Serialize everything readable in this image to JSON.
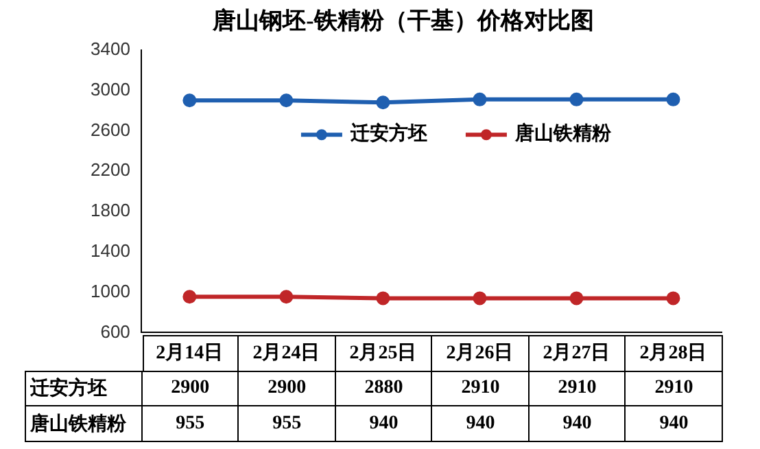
{
  "chart_data": {
    "type": "line",
    "title": "唐山钢坯-铁精粉（干基）价格对比图",
    "categories": [
      "2月14日",
      "2月24日",
      "2月25日",
      "2月26日",
      "2月27日",
      "2月28日"
    ],
    "series": [
      {
        "name": "迁安方坯",
        "color": "#1f5fb0",
        "values": [
          2900,
          2900,
          2880,
          2910,
          2910,
          2910
        ]
      },
      {
        "name": "唐山铁精粉",
        "color": "#c02628",
        "values": [
          955,
          955,
          940,
          940,
          940,
          940
        ]
      }
    ],
    "ylim": [
      600,
      3400
    ],
    "yticks": [
      600,
      1000,
      1400,
      1800,
      2200,
      2600,
      3000,
      3400
    ],
    "grid": false,
    "legend": "top",
    "marker": "circle",
    "line_style": "solid",
    "data_labels": true
  }
}
